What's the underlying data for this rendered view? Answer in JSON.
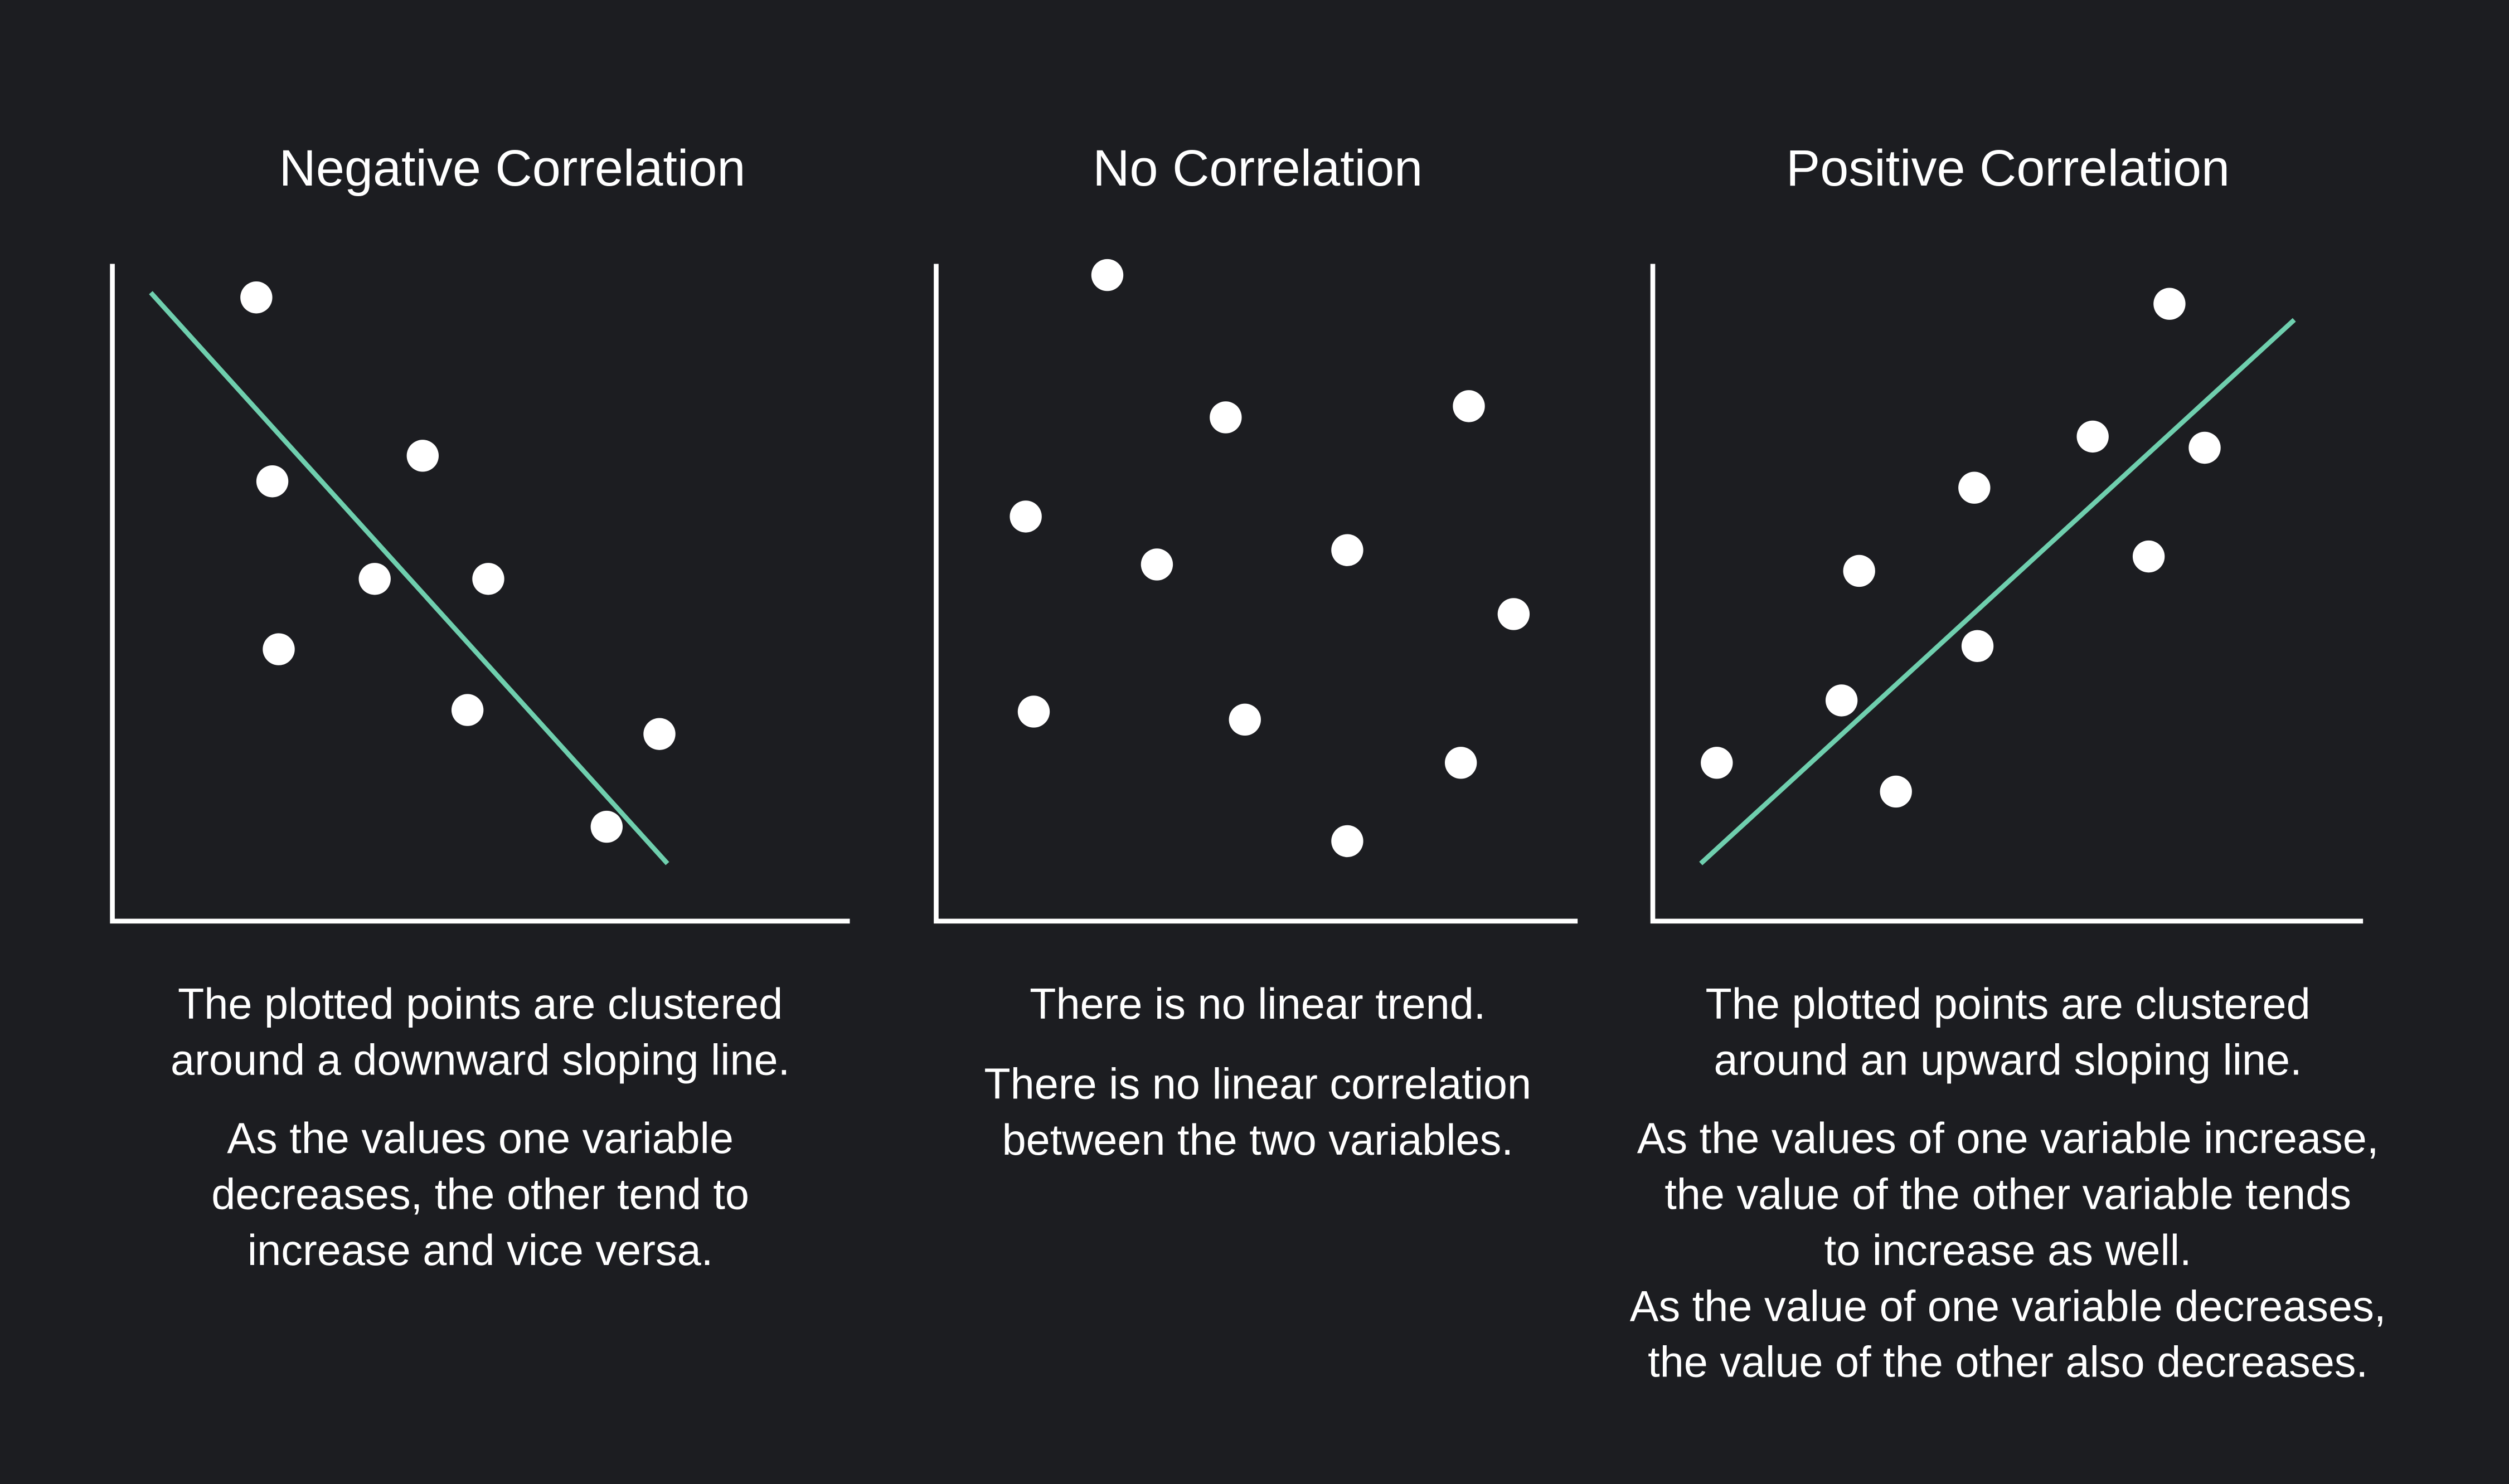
{
  "colors": {
    "background": "#1c1d21",
    "trend_line": "#6fcfae",
    "points": "#ffffff",
    "axes": "#ffffff"
  },
  "panels": [
    {
      "title": "Negative Correlation",
      "description": [
        "The plotted points are clustered",
        "around a downward sloping line."
      ],
      "note": [
        "As the values one variable",
        "decreases, the other tend to",
        "increase and vice versa."
      ]
    },
    {
      "title": "No Correlation",
      "description": [
        "There is no linear trend."
      ],
      "note": [
        "There is no linear correlation",
        "between the two variables."
      ]
    },
    {
      "title": "Positive Correlation",
      "description": [
        "The plotted points are clustered",
        "around an upward sloping line."
      ],
      "note": [
        "As the values of one variable increase,",
        "the value of the other variable tends",
        "to increase as well.",
        "As the value of one variable decreases,",
        "the value of the other also decreases."
      ]
    }
  ]
}
